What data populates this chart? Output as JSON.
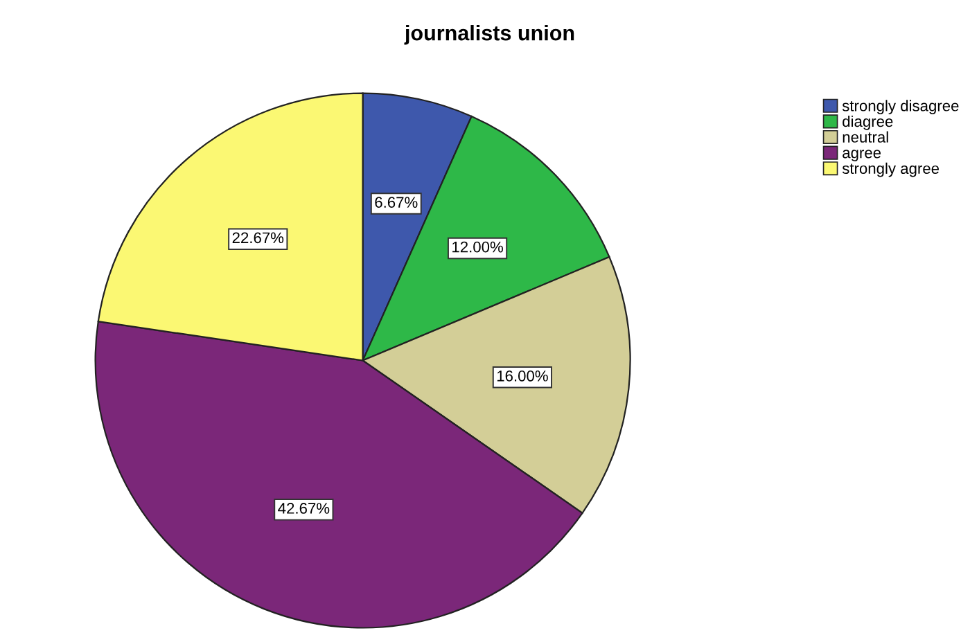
{
  "chart_data": {
    "type": "pie",
    "title": "journalists union",
    "categories": [
      "strongly disagree",
      "diagree",
      "neutral",
      "agree",
      "strongly agree"
    ],
    "values": [
      6.67,
      12.0,
      16.0,
      42.67,
      22.67
    ],
    "value_labels": [
      "6.67%",
      "12.00%",
      "16.00%",
      "42.67%",
      "22.67%"
    ],
    "colors": [
      "#3e58ac",
      "#2eb848",
      "#d3ce97",
      "#7b2779",
      "#fbf873"
    ],
    "legend": "top right"
  }
}
